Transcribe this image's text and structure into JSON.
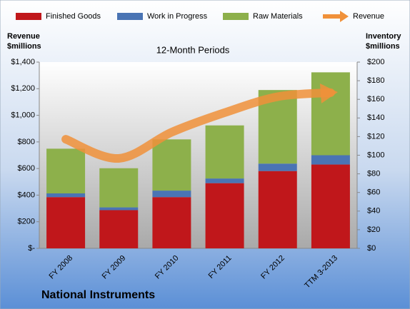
{
  "chart_data": {
    "type": "bar",
    "stacked": true,
    "title": "National Instruments",
    "subtitle": "12-Month Periods",
    "y_label": "Revenue $millions",
    "y2_label": "Inventory $millions",
    "categories": [
      "FY 2008",
      "FY 2009",
      "FY 2010",
      "FY 2011",
      "FY 2012",
      "TTM 3-2013"
    ],
    "series": [
      {
        "name": "Finished Goods",
        "color": "#c0171b",
        "type": "bar",
        "axis": "y2",
        "values": [
          55,
          41,
          55,
          70,
          83,
          90
        ]
      },
      {
        "name": "Work in Progress",
        "color": "#4a74b4",
        "type": "bar",
        "axis": "y2",
        "values": [
          4,
          3,
          7,
          5,
          8,
          10
        ]
      },
      {
        "name": "Raw Materials",
        "color": "#8db04b",
        "type": "bar",
        "axis": "y2",
        "values": [
          48,
          42,
          55,
          57,
          79,
          89
        ]
      },
      {
        "name": "Revenue",
        "color": "#f0913a",
        "type": "line",
        "axis": "y",
        "values": [
          820,
          676,
          873,
          1020,
          1140,
          1170
        ]
      }
    ],
    "ylim": [
      0,
      1400
    ],
    "yticks": [
      {
        "value": 0,
        "label": "$-"
      },
      {
        "value": 200,
        "label": "$200"
      },
      {
        "value": 400,
        "label": "$400"
      },
      {
        "value": 600,
        "label": "$600"
      },
      {
        "value": 800,
        "label": "$800"
      },
      {
        "value": 1000,
        "label": "$1,000"
      },
      {
        "value": 1200,
        "label": "$1,200"
      },
      {
        "value": 1400,
        "label": "$1,400"
      }
    ],
    "y2lim": [
      0,
      200
    ],
    "y2ticks": [
      {
        "value": 0,
        "label": "$0"
      },
      {
        "value": 20,
        "label": "$20"
      },
      {
        "value": 40,
        "label": "$40"
      },
      {
        "value": 60,
        "label": "$60"
      },
      {
        "value": 80,
        "label": "$80"
      },
      {
        "value": 100,
        "label": "$100"
      },
      {
        "value": 120,
        "label": "$120"
      },
      {
        "value": 140,
        "label": "$140"
      },
      {
        "value": 160,
        "label": "$160"
      },
      {
        "value": 180,
        "label": "$180"
      },
      {
        "value": 200,
        "label": "$200"
      }
    ],
    "legend": "top"
  }
}
